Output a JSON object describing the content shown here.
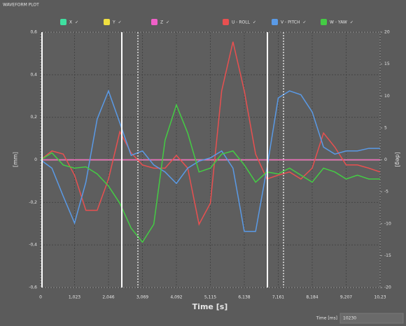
{
  "chart_data": {
    "type": "line",
    "title": "WAVEFORM PLOT",
    "x_label": "Time [s]",
    "y_label": "[mm]",
    "y2_label": "[deg]",
    "check_mark": "✓",
    "x": [
      0,
      341,
      682,
      1023,
      1364,
      1705,
      2046,
      2387,
      2728,
      3069,
      3410,
      3751,
      4092,
      4433,
      4774,
      5115,
      5456,
      5797,
      6138,
      6479,
      6820,
      7161,
      7502,
      7843,
      8184,
      8525,
      8866,
      9207,
      9548,
      9889,
      10230
    ],
    "xlim": [
      0,
      10230
    ],
    "xticks": [
      0,
      {
        "value": 1023,
        "label": "1,023"
      },
      {
        "value": 2046,
        "label": "2,046"
      },
      {
        "value": 3069,
        "label": "3,069"
      },
      {
        "value": 4092,
        "label": "4,092"
      },
      {
        "value": 5115,
        "label": "5,115"
      },
      {
        "value": 6138,
        "label": "6,138"
      },
      {
        "value": 7161,
        "label": "7,161"
      },
      {
        "value": 8184,
        "label": "8,184"
      },
      {
        "value": 9207,
        "label": "9,207"
      },
      {
        "value": 10230,
        "label": "10,23"
      }
    ],
    "ylim": [
      -0.6,
      0.6
    ],
    "yticks": [
      {
        "value": -0.6,
        "label": "-0,6"
      },
      {
        "value": -0.4,
        "label": "-0,4"
      },
      {
        "value": -0.2,
        "label": "-0,2"
      },
      0,
      {
        "value": 0.2,
        "label": "0,2"
      },
      {
        "value": 0.4,
        "label": "0,4"
      },
      {
        "value": 0.6,
        "label": "0,6"
      }
    ],
    "y2lim": [
      -20,
      20
    ],
    "y2ticks": [
      -20,
      -15,
      -10,
      -5,
      0,
      5,
      10,
      15,
      20
    ],
    "grid": true,
    "cursors": [
      {
        "x": 42,
        "style": "solid"
      },
      {
        "x": 2447,
        "style": "solid"
      },
      {
        "x": 2932,
        "style": "dotted"
      },
      {
        "x": 6835,
        "style": "solid"
      },
      {
        "x": 7320,
        "style": "dotted"
      }
    ],
    "series": [
      {
        "name": "X",
        "color": "#3fe0a0",
        "values": [
          0,
          0,
          0,
          0,
          0,
          0,
          0,
          0,
          0,
          0,
          0,
          0,
          0,
          0,
          0,
          0,
          0,
          0,
          0,
          0,
          0,
          0,
          0,
          0,
          0,
          0,
          0,
          0,
          0,
          0,
          0
        ]
      },
      {
        "name": "Y",
        "color": "#f0e040",
        "values": [
          0,
          0,
          0,
          0,
          0,
          0,
          0,
          0,
          0,
          0,
          0,
          0,
          0,
          0,
          0,
          0,
          0,
          0,
          0,
          0,
          0,
          0,
          0,
          0,
          0,
          0,
          0,
          0,
          0,
          0,
          0
        ]
      },
      {
        "name": "Z",
        "color": "#f060c8",
        "values": [
          0,
          0,
          0,
          0,
          0,
          0,
          0,
          0,
          0,
          0,
          0,
          0,
          0,
          0,
          0,
          0,
          0,
          0,
          0,
          0,
          0,
          0,
          0,
          0,
          0,
          0,
          0,
          0,
          0,
          0,
          0
        ]
      },
      {
        "name": "U - ROLL",
        "color": "#e85050",
        "axis": "y2",
        "values": [
          0,
          1.4,
          0.9,
          -2.4,
          -7.9,
          -7.9,
          -3.0,
          4.4,
          1.1,
          -0.8,
          -1.3,
          -1.3,
          0.7,
          -1.3,
          -10.1,
          -6.8,
          10.8,
          18.5,
          10.8,
          0.9,
          -3.0,
          -2.4,
          -1.9,
          -3.0,
          -1.3,
          4.2,
          2.0,
          -0.8,
          -0.8,
          -1.3,
          -1.9
        ]
      },
      {
        "name": "V - PITCH",
        "color": "#5a9ae6",
        "axis": "y2",
        "values": [
          0,
          -1.3,
          -5.7,
          -9.9,
          -3.5,
          6.4,
          10.8,
          5.8,
          0.7,
          1.4,
          -0.8,
          -1.9,
          -3.7,
          -1.3,
          -0.2,
          0.3,
          1.4,
          -1.3,
          -11.2,
          -11.2,
          -1.3,
          9.7,
          10.8,
          10.2,
          7.5,
          2.0,
          0.9,
          1.4,
          1.4,
          1.8,
          1.8
        ]
      },
      {
        "name": "W - YAW",
        "color": "#44cc44",
        "axis": "y2",
        "values": [
          0,
          1.1,
          -0.8,
          -1.3,
          -1.1,
          -2.2,
          -4.1,
          -6.8,
          -10.7,
          -12.9,
          -10.1,
          3.1,
          8.6,
          4.2,
          -1.9,
          -1.3,
          0.9,
          1.4,
          -0.8,
          -3.5,
          -1.9,
          -2.2,
          -1.3,
          -2.4,
          -3.5,
          -1.3,
          -1.9,
          -3.0,
          -2.4,
          -3.0,
          -3.0
        ]
      }
    ]
  },
  "controls": {
    "time_label": "Time [ms]",
    "time_value": 10230
  }
}
